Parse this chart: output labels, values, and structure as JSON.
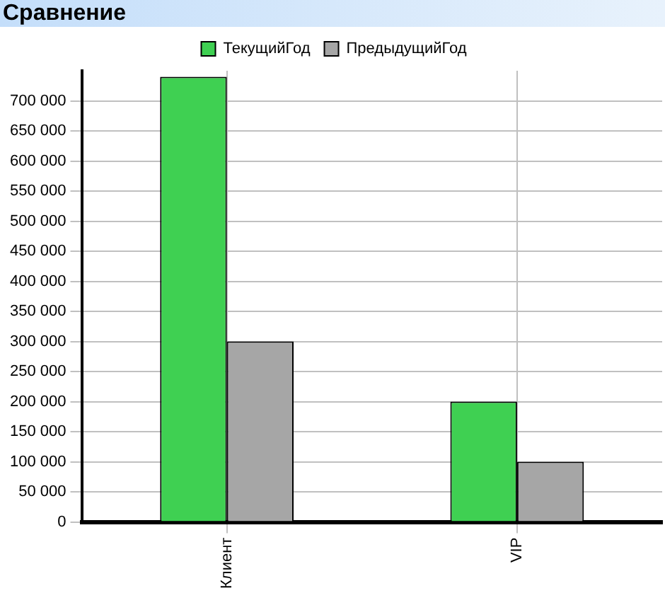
{
  "chart_data": {
    "type": "bar",
    "title": "Сравнение",
    "categories": [
      "Клиент",
      "VIP"
    ],
    "series": [
      {
        "name": "ТекущийГод",
        "color": "#3fd052",
        "values": [
          740000,
          200000
        ]
      },
      {
        "name": "ПредыдущийГод",
        "color": "#a6a6a6",
        "values": [
          300000,
          100000
        ]
      }
    ],
    "ylim": [
      0,
      750000
    ],
    "yticks": [
      {
        "value": 0,
        "label": "0"
      },
      {
        "value": 50000,
        "label": "50 000"
      },
      {
        "value": 100000,
        "label": "100 000"
      },
      {
        "value": 150000,
        "label": "150 000"
      },
      {
        "value": 200000,
        "label": "200 000"
      },
      {
        "value": 250000,
        "label": "250 000"
      },
      {
        "value": 300000,
        "label": "300 000"
      },
      {
        "value": 350000,
        "label": "350 000"
      },
      {
        "value": 400000,
        "label": "400 000"
      },
      {
        "value": 450000,
        "label": "450 000"
      },
      {
        "value": 500000,
        "label": "500 000"
      },
      {
        "value": 550000,
        "label": "550 000"
      },
      {
        "value": 600000,
        "label": "600 000"
      },
      {
        "value": 650000,
        "label": "650 000"
      },
      {
        "value": 700000,
        "label": "700 000"
      }
    ],
    "grid": true,
    "legend": "top"
  }
}
